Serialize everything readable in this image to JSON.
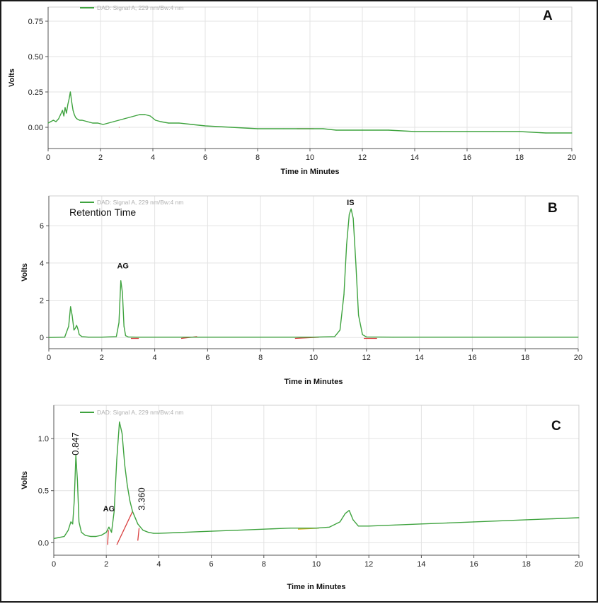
{
  "chart_data": [
    {
      "type": "line",
      "panel_letter": "A",
      "legend": "DAD: Signal A, 229 nm/Bw:4 nm",
      "xlabel": "Time in Minutes",
      "ylabel": "Volts",
      "xlim": [
        0,
        20
      ],
      "ylim": [
        -0.15,
        0.85
      ],
      "xticks": [
        0,
        2,
        4,
        6,
        8,
        10,
        12,
        14,
        16,
        18,
        20
      ],
      "yticks": [
        0.0,
        0.25,
        0.5,
        0.75
      ],
      "ytick_labels": [
        "0.00",
        "0.25",
        "0.50",
        "0.75"
      ],
      "grid": true,
      "line_color": "#3fa33f",
      "series": [
        {
          "x": [
            0,
            0.1,
            0.2,
            0.3,
            0.4,
            0.5,
            0.55,
            0.6,
            0.65,
            0.7,
            0.75,
            0.8,
            0.85,
            0.9,
            0.95,
            1.0,
            1.05,
            1.1,
            1.2,
            1.3,
            1.5,
            1.7,
            1.9,
            2.1,
            2.3,
            2.5,
            2.7,
            2.9,
            3.1,
            3.3,
            3.5,
            3.7,
            3.9,
            4.1,
            4.3,
            4.6,
            5.0,
            5.5,
            6.0,
            7.0,
            8.0,
            9.0,
            10.0,
            10.5,
            11.0,
            12.0,
            13.0,
            14.0,
            15.0,
            16.0,
            17.0,
            18.0,
            19.0,
            20.0
          ],
          "y": [
            0.03,
            0.04,
            0.05,
            0.04,
            0.06,
            0.1,
            0.12,
            0.08,
            0.14,
            0.1,
            0.16,
            0.2,
            0.25,
            0.18,
            0.12,
            0.09,
            0.07,
            0.06,
            0.05,
            0.05,
            0.04,
            0.03,
            0.03,
            0.02,
            0.03,
            0.04,
            0.05,
            0.06,
            0.07,
            0.08,
            0.09,
            0.09,
            0.08,
            0.05,
            0.04,
            0.03,
            0.03,
            0.02,
            0.01,
            0.0,
            -0.01,
            -0.01,
            -0.01,
            -0.01,
            -0.02,
            -0.02,
            -0.02,
            -0.03,
            -0.03,
            -0.03,
            -0.03,
            -0.03,
            -0.04,
            -0.04
          ]
        }
      ],
      "baseline_segments": [
        {
          "x1": 2.7,
          "y1": 0.0,
          "x2": 2.72,
          "y2": 0.0,
          "color": "#d94040"
        },
        {
          "x1": 9.5,
          "y1": -0.01,
          "x2": 10.15,
          "y2": -0.01,
          "color": "#d94040"
        }
      ]
    },
    {
      "type": "line",
      "panel_letter": "B",
      "legend": "DAD: Signal A, 229 nm/Bw:4 nm",
      "note": "Retention Time",
      "xlabel": "Time in Minutes",
      "ylabel": "Volts",
      "xlim": [
        0,
        20
      ],
      "ylim": [
        -0.6,
        7.6
      ],
      "xticks": [
        0,
        2,
        4,
        6,
        8,
        10,
        12,
        14,
        16,
        18,
        20
      ],
      "yticks": [
        0,
        2,
        4,
        6
      ],
      "ytick_labels": [
        "0",
        "2",
        "4",
        "6"
      ],
      "grid": true,
      "line_color": "#3fa33f",
      "series": [
        {
          "x": [
            0,
            0.6,
            0.75,
            0.82,
            0.88,
            0.95,
            1.0,
            1.05,
            1.1,
            1.15,
            1.25,
            1.5,
            2.0,
            2.55,
            2.65,
            2.72,
            2.78,
            2.84,
            2.9,
            3.0,
            3.3,
            4.0,
            6.0,
            8.0,
            10.0,
            10.8,
            11.0,
            11.15,
            11.25,
            11.35,
            11.42,
            11.5,
            11.6,
            11.7,
            11.85,
            12.0,
            13.0,
            16.0,
            20.0
          ],
          "y": [
            0,
            0.02,
            0.6,
            1.65,
            1.2,
            0.4,
            0.5,
            0.65,
            0.45,
            0.15,
            0.05,
            0.02,
            0.02,
            0.05,
            0.8,
            3.05,
            2.4,
            0.6,
            0.1,
            0.03,
            0.02,
            0.02,
            0.02,
            0.02,
            0.02,
            0.05,
            0.4,
            2.3,
            5.0,
            6.6,
            6.9,
            6.4,
            4.0,
            1.2,
            0.15,
            0.03,
            0.02,
            0.02,
            0.02
          ]
        }
      ],
      "baseline_segments": [
        {
          "x1": 3.1,
          "y1": -0.05,
          "x2": 3.4,
          "y2": -0.05,
          "color": "#d94040"
        },
        {
          "x1": 5.0,
          "y1": -0.05,
          "x2": 5.6,
          "y2": 0.05,
          "color": "#d94040"
        },
        {
          "x1": 9.3,
          "y1": -0.05,
          "x2": 10.2,
          "y2": 0.02,
          "color": "#d94040"
        },
        {
          "x1": 11.9,
          "y1": -0.05,
          "x2": 12.4,
          "y2": -0.05,
          "color": "#d94040"
        }
      ],
      "peak_labels": [
        {
          "text": "AG",
          "x": 2.8,
          "y": 3.7
        },
        {
          "text": "IS",
          "x": 11.4,
          "y": 7.1
        }
      ]
    },
    {
      "type": "line",
      "panel_letter": "C",
      "legend": "DAD: Signal A, 229 nm/Bw:4 nm",
      "xlabel": "Time in Minutes",
      "ylabel": "Volts",
      "xlim": [
        0,
        20
      ],
      "ylim": [
        -0.12,
        1.32
      ],
      "xticks": [
        0,
        2,
        4,
        6,
        8,
        10,
        12,
        14,
        16,
        18,
        20
      ],
      "yticks": [
        0.0,
        0.5,
        1.0
      ],
      "ytick_labels": [
        "0.0",
        "0.5",
        "1.0"
      ],
      "grid": true,
      "line_color": "#3fa33f",
      "series": [
        {
          "x": [
            0,
            0.2,
            0.4,
            0.55,
            0.65,
            0.72,
            0.78,
            0.84,
            0.9,
            0.96,
            1.05,
            1.2,
            1.4,
            1.6,
            1.8,
            2.0,
            2.1,
            2.2,
            2.3,
            2.4,
            2.5,
            2.6,
            2.7,
            2.8,
            2.9,
            3.0,
            3.2,
            3.4,
            3.6,
            3.8,
            4.0,
            5.0,
            6.0,
            7.0,
            8.0,
            9.0,
            10.0,
            10.5,
            10.9,
            11.1,
            11.25,
            11.4,
            11.6,
            12.0,
            13.0,
            14.0,
            15.0,
            16.0,
            17.0,
            18.0,
            19.0,
            20.0
          ],
          "y": [
            0.04,
            0.05,
            0.06,
            0.12,
            0.2,
            0.18,
            0.4,
            0.84,
            0.6,
            0.2,
            0.1,
            0.07,
            0.06,
            0.06,
            0.07,
            0.1,
            0.15,
            0.1,
            0.3,
            0.8,
            1.16,
            1.05,
            0.75,
            0.55,
            0.4,
            0.3,
            0.18,
            0.12,
            0.1,
            0.09,
            0.09,
            0.1,
            0.11,
            0.12,
            0.13,
            0.14,
            0.14,
            0.15,
            0.2,
            0.28,
            0.31,
            0.22,
            0.16,
            0.16,
            0.17,
            0.18,
            0.19,
            0.2,
            0.21,
            0.22,
            0.23,
            0.24
          ]
        }
      ],
      "baseline_segments": [
        {
          "x1": 2.05,
          "y1": -0.02,
          "x2": 2.08,
          "y2": 0.12,
          "color": "#d94040"
        },
        {
          "x1": 2.4,
          "y1": -0.02,
          "x2": 3.0,
          "y2": 0.3,
          "color": "#d94040"
        },
        {
          "x1": 3.2,
          "y1": 0.02,
          "x2": 3.25,
          "y2": 0.14,
          "color": "#d94040"
        },
        {
          "x1": 9.3,
          "y1": 0.13,
          "x2": 10.1,
          "y2": 0.14,
          "color": "#e0b020"
        }
      ],
      "peak_labels": [
        {
          "text": "AG",
          "x": 2.1,
          "y": 0.3
        }
      ],
      "value_labels": [
        {
          "text": "0.847",
          "x": 0.84,
          "y": 0.95
        },
        {
          "text": "3.360",
          "x": 3.36,
          "y": 0.42
        }
      ]
    }
  ]
}
